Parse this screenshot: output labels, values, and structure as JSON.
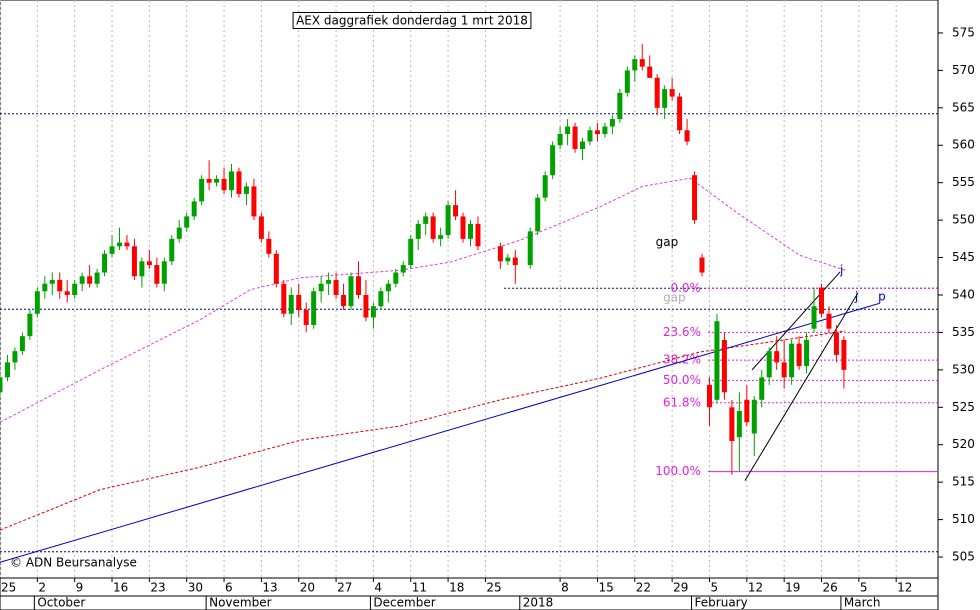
{
  "chart_data": {
    "type": "candlestick",
    "title": "AEX daggrafiek donderdag 1 mrt 2018",
    "credit": "© ADN Beursanalyse",
    "xlim": [
      0,
      125.6
    ],
    "ylim": [
      502.2,
      579.4
    ],
    "yticks": [
      505,
      510,
      515,
      520,
      525,
      530,
      535,
      540,
      545,
      550,
      555,
      560,
      565,
      570,
      575
    ],
    "grid": true,
    "xticks": [
      {
        "value": 0,
        "label": "25"
      },
      {
        "value": 5,
        "label": "2"
      },
      {
        "value": 10,
        "label": "9"
      },
      {
        "value": 15,
        "label": "16"
      },
      {
        "value": 20,
        "label": "23"
      },
      {
        "value": 25,
        "label": "30"
      },
      {
        "value": 30,
        "label": "6"
      },
      {
        "value": 35,
        "label": "13"
      },
      {
        "value": 40,
        "label": "20"
      },
      {
        "value": 45,
        "label": "27"
      },
      {
        "value": 50,
        "label": "4"
      },
      {
        "value": 55,
        "label": "11"
      },
      {
        "value": 60,
        "label": "18"
      },
      {
        "value": 65,
        "label": "25"
      },
      {
        "value": 75,
        "label": "8"
      },
      {
        "value": 80,
        "label": "15"
      },
      {
        "value": 85,
        "label": "22"
      },
      {
        "value": 90,
        "label": "29"
      },
      {
        "value": 95,
        "label": "5"
      },
      {
        "value": 100,
        "label": "12"
      },
      {
        "value": 105,
        "label": "19"
      },
      {
        "value": 110,
        "label": "26"
      },
      {
        "value": 115,
        "label": "5"
      },
      {
        "value": 120,
        "label": "12"
      }
    ],
    "month_ticks": [
      {
        "value": 4.6,
        "label": "October"
      },
      {
        "value": 27.6,
        "label": "November"
      },
      {
        "value": 49.6,
        "label": "December"
      },
      {
        "value": 69.6,
        "label": "2018"
      },
      {
        "value": 92.6,
        "label": "February"
      },
      {
        "value": 112.6,
        "label": "March"
      }
    ],
    "candles": {
      "up_color": "#00a000",
      "down_color": "#ff0000",
      "open": [
        527,
        529,
        531,
        532.5,
        534.5,
        537.5,
        540.5,
        541.5,
        542,
        540.5,
        540,
        541.5,
        542.5,
        541.5,
        543,
        545.5,
        546.5,
        547,
        546.5,
        542.5,
        544.5,
        544,
        541.5,
        544.5,
        547.5,
        549,
        550.5,
        552.5,
        555.5,
        555,
        555.5,
        554,
        556.5,
        553.5,
        554.5,
        550.5,
        547.5,
        545.5,
        541.5,
        537.5,
        540,
        538,
        536,
        540.5,
        541.5,
        542,
        540,
        538.5,
        542.5,
        540,
        537,
        538.5,
        540.5,
        541.5,
        543,
        544,
        547.5,
        549.5,
        550.5,
        547.5,
        548,
        552,
        550.5,
        547.5,
        549.5,
        null,
        null,
        546.5,
        544.5,
        545,
        null,
        544,
        548.5,
        553,
        556,
        560,
        561.5,
        562.5,
        559.5,
        560.5,
        562,
        561.5,
        562.5,
        563.5,
        567,
        570,
        571.5,
        570.5,
        569,
        565,
        567.5,
        566.5,
        562,
        556,
        545,
        528,
        526,
        534,
        525,
        521,
        526,
        521.5,
        526,
        529,
        532.5,
        531,
        529,
        533.5,
        530.5,
        535.5,
        541,
        537.5,
        535,
        534
      ],
      "high": [
        529.5,
        532,
        533,
        535,
        538,
        541,
        542.5,
        543,
        543,
        542,
        542,
        543,
        544,
        543.5,
        546,
        548,
        549,
        548,
        547.5,
        545,
        546,
        545,
        545,
        548,
        550,
        551,
        553,
        556,
        558,
        556,
        557,
        557.5,
        557,
        555,
        555.5,
        551,
        548.5,
        546,
        542,
        541,
        541.5,
        539,
        541,
        542.5,
        543,
        543,
        541.5,
        543,
        544.5,
        542,
        539,
        541,
        542,
        543.5,
        544.5,
        548,
        550,
        551,
        551,
        549,
        552.5,
        554,
        551,
        550,
        550.5,
        null,
        null,
        547,
        545.5,
        546,
        null,
        549,
        553.5,
        556.5,
        560.5,
        562.5,
        563.5,
        563,
        561,
        562.5,
        563,
        563,
        564,
        567.5,
        570.5,
        572,
        573.5,
        572,
        569.5,
        568,
        569,
        567,
        563.5,
        556.5,
        545.5,
        529,
        537.5,
        535,
        526,
        527,
        528,
        526.5,
        530,
        533,
        534.5,
        534,
        534,
        534.5,
        535,
        541,
        541.5,
        538.5,
        536,
        534.5
      ],
      "low": [
        526.5,
        528.5,
        530,
        532,
        534,
        537,
        539.5,
        540,
        539.5,
        539,
        539.5,
        540.5,
        541,
        541,
        542.5,
        545,
        546,
        546,
        542,
        541,
        543.5,
        541,
        540.5,
        544,
        547,
        548.5,
        550,
        552,
        554,
        554.5,
        553.5,
        553,
        553,
        552,
        550,
        547,
        545,
        541,
        537,
        536,
        537,
        535,
        535.5,
        539,
        540,
        539.5,
        538,
        538,
        539.5,
        536.5,
        535.5,
        538,
        539,
        541,
        542.5,
        543.5,
        546,
        548,
        547,
        546.5,
        547.5,
        550,
        547,
        546.5,
        546,
        null,
        null,
        543.5,
        544,
        541.5,
        null,
        543.5,
        548,
        552.5,
        555.5,
        559.5,
        560,
        559,
        558,
        560,
        560.5,
        561,
        561.5,
        563,
        566.5,
        568.5,
        570,
        569,
        564,
        563.5,
        566,
        561.5,
        560,
        549.5,
        542.5,
        522.5,
        525.5,
        526,
        516,
        516.5,
        522.5,
        518.5,
        525,
        528,
        530,
        527.5,
        528,
        530,
        529.5,
        535,
        537,
        535,
        531,
        527.5
      ],
      "close": [
        529,
        531,
        532.5,
        534.5,
        537.5,
        540.5,
        541.5,
        542,
        540.5,
        540,
        541.5,
        542.5,
        541.5,
        543,
        545.5,
        546.5,
        547,
        546.5,
        542.5,
        544.5,
        544,
        541.5,
        544.5,
        547.5,
        549,
        550.5,
        552.5,
        555.5,
        555,
        555.5,
        554,
        556.5,
        553.5,
        554.5,
        550.5,
        547.5,
        545.5,
        541.5,
        537.5,
        540,
        538,
        536,
        540.5,
        541.5,
        542,
        540,
        538.5,
        542.5,
        540,
        537,
        538.5,
        540.5,
        541.5,
        543,
        544,
        547.5,
        549.5,
        550.5,
        547.5,
        548,
        552,
        550.5,
        547.5,
        549.5,
        546.5,
        null,
        null,
        544.5,
        545,
        544,
        null,
        548.5,
        553,
        556,
        560,
        561.5,
        562.5,
        559.5,
        560.5,
        562,
        561.5,
        562.5,
        563.5,
        567,
        570,
        571.5,
        570.5,
        569,
        565,
        567.5,
        566.5,
        562,
        560.5,
        550,
        543,
        525,
        536.5,
        527,
        520.5,
        524.5,
        523,
        526,
        529,
        532.5,
        531,
        529,
        533.5,
        530.5,
        534,
        538.5,
        537.5,
        535.5,
        532,
        530
      ]
    },
    "moving_averages": [
      {
        "color": "#e040e0",
        "x": [
          0,
          13.4,
          26.8,
          33.5,
          40.2,
          53.6,
          60.3,
          69.6,
          80.4,
          86,
          92.4,
          99.1,
          107.1,
          113.2
        ],
        "values": [
          523,
          530,
          536.7,
          540.7,
          542.3,
          543.3,
          544.4,
          547.3,
          551.8,
          554.5,
          555.6,
          550.7,
          545.3,
          543.3
        ]
      },
      {
        "color": "#e00000",
        "x": [
          0,
          13.4,
          26.8,
          40.2,
          53.6,
          67,
          80.4,
          93.8,
          107.1,
          113.2
        ],
        "values": [
          508.6,
          514,
          517,
          520.6,
          522.5,
          526,
          528.9,
          532.4,
          534.3,
          535.2
        ]
      }
    ],
    "hlines": [
      {
        "value": 564.2,
        "x_start": 0,
        "color": "#000080"
      },
      {
        "value": 538.1,
        "x_start": 0,
        "color": "#000080"
      },
      {
        "value": 505.7,
        "x_start": 0,
        "color": "#000080"
      },
      {
        "value": 540.9,
        "x_start": 67.5,
        "color": "#000080"
      }
    ],
    "fib": {
      "color": "#e020e0",
      "x_start": 94.8,
      "levels": [
        {
          "value": 540.9,
          "label": "0.0%"
        },
        {
          "value": 535.0,
          "label": "23.6%"
        },
        {
          "value": 531.3,
          "label": "38.2%"
        },
        {
          "value": 528.6,
          "label": "50.0%"
        },
        {
          "value": 525.6,
          "label": "61.8%"
        },
        {
          "value": 516.4,
          "label": "100.0%"
        }
      ]
    },
    "trend_lines": [
      {
        "color": "#0000c0",
        "x": [
          0,
          117.8
        ],
        "values": [
          504.3,
          538.9
        ]
      },
      {
        "color": "#000000",
        "x": [
          99.75,
          114.9
        ],
        "values": [
          515.2,
          540.3
        ]
      },
      {
        "color": "#000000",
        "x": [
          100.7,
          112.5
        ],
        "values": [
          530,
          543.1
        ]
      }
    ],
    "annotations": [
      {
        "text": "gap",
        "x": 89.3,
        "y": 547,
        "color": "#000000"
      },
      {
        "text": "gap",
        "x": 90.3,
        "y": 539.6,
        "color": "#b0b0b0"
      },
      {
        "text": "j",
        "x": 112.7,
        "y": 543.3,
        "color": "#0000c0"
      },
      {
        "text": "j",
        "x": 114.7,
        "y": 539.7,
        "color": "#0000c0"
      },
      {
        "text": "p",
        "x": 118.1,
        "y": 539.7,
        "color": "#0000c0"
      }
    ]
  }
}
